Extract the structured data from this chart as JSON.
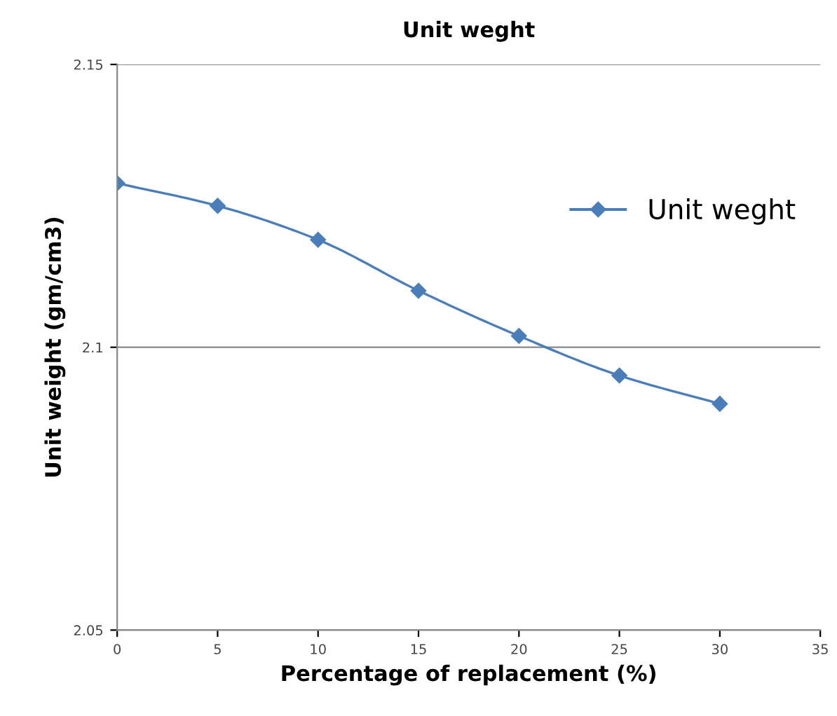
{
  "chart_data": {
    "type": "line",
    "title": "Unit weght",
    "xlabel": "Percentage of replacement (%)",
    "ylabel": "Unit weight (gm/cm3)",
    "x": [
      0,
      5,
      10,
      15,
      20,
      25,
      30
    ],
    "series": [
      {
        "name": "Unit weght",
        "color": "#4a7ebb",
        "values": [
          2.129,
          2.125,
          2.119,
          2.11,
          2.102,
          2.095,
          2.09
        ]
      }
    ],
    "xlim": [
      0,
      35
    ],
    "xticks": [
      0,
      5,
      10,
      15,
      20,
      25,
      30,
      35
    ],
    "ylim": [
      2.05,
      2.15
    ],
    "yticks": [
      2.05,
      2.1,
      2.15
    ],
    "grid": "y",
    "legend": "right",
    "marker": "diamond",
    "line_style": "solid"
  }
}
